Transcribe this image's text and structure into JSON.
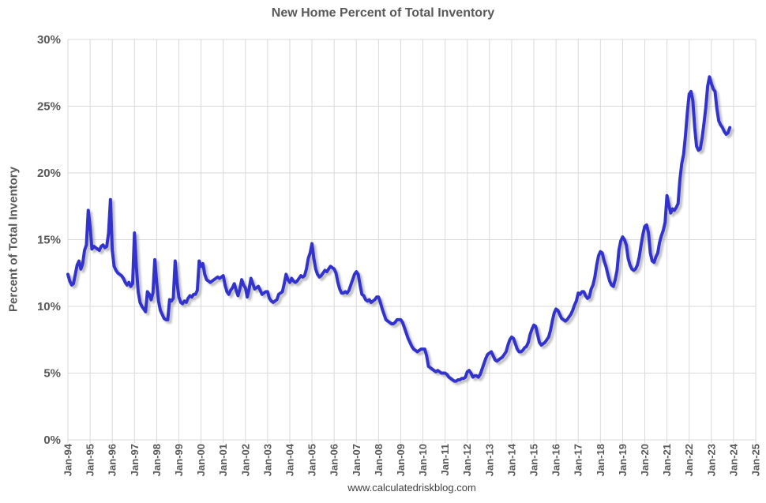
{
  "chart_data": {
    "type": "line",
    "title": "New Home Percent of Total Inventory",
    "ylabel": "Percent of Total Inventory",
    "watermark": "www.calculatedriskblog.com",
    "grid": true,
    "legend": "none",
    "line_color": "#3333cf",
    "grid_color": "#d9d9d9",
    "text_color": "#595959",
    "ylim": [
      0,
      30
    ],
    "y_tick_labels": [
      "0%",
      "5%",
      "10%",
      "15%",
      "20%",
      "25%",
      "30%"
    ],
    "x_tick_labels": [
      "Jan-94",
      "Jan-95",
      "Jan-96",
      "Jan-97",
      "Jan-98",
      "Jan-99",
      "Jan-00",
      "Jan-01",
      "Jan-02",
      "Jan-03",
      "Jan-04",
      "Jan-05",
      "Jan-06",
      "Jan-07",
      "Jan-08",
      "Jan-09",
      "Jan-10",
      "Jan-11",
      "Jan-12",
      "Jan-13",
      "Jan-14",
      "Jan-15",
      "Jan-16",
      "Jan-17",
      "Jan-18",
      "Jan-19",
      "Jan-20",
      "Jan-21",
      "Jan-22",
      "Jan-23",
      "Jan-24",
      "Jan-25"
    ],
    "x_start": "Jan-1994",
    "x_end": "Nov-2023",
    "frequency": "monthly",
    "series": [
      {
        "name": "New Home Percent of Total Inventory",
        "values": [
          12.4,
          11.9,
          11.6,
          11.7,
          12.4,
          13.1,
          13.4,
          12.8,
          13.2,
          14.2,
          14.6,
          17.2,
          16.0,
          14.3,
          14.5,
          14.4,
          14.3,
          14.2,
          14.5,
          14.6,
          14.4,
          14.5,
          15.5,
          18.0,
          14.2,
          13.0,
          12.7,
          12.5,
          12.4,
          12.3,
          12.1,
          11.8,
          11.6,
          11.8,
          11.5,
          11.7,
          15.5,
          13.0,
          11.1,
          10.3,
          10.0,
          9.8,
          9.6,
          11.1,
          10.9,
          10.5,
          11.0,
          13.5,
          11.8,
          10.4,
          9.7,
          9.4,
          9.1,
          9.0,
          9.0,
          10.5,
          10.4,
          10.6,
          13.4,
          11.8,
          10.7,
          10.3,
          10.2,
          10.4,
          10.3,
          10.6,
          10.8,
          10.7,
          10.9,
          10.9,
          11.2,
          13.4,
          13.0,
          13.2,
          12.4,
          12.0,
          11.9,
          11.8,
          11.9,
          12.0,
          12.1,
          12.2,
          12.1,
          12.2,
          12.3,
          11.6,
          11.1,
          10.9,
          11.2,
          11.4,
          11.7,
          11.2,
          10.8,
          11.3,
          12.0,
          11.6,
          11.4,
          10.7,
          11.3,
          12.1,
          11.7,
          11.3,
          11.4,
          11.5,
          11.2,
          10.9,
          11.0,
          11.1,
          11.1,
          10.6,
          10.4,
          10.3,
          10.4,
          10.5,
          10.9,
          11.0,
          11.1,
          11.7,
          12.4,
          12.0,
          11.8,
          12.1,
          11.9,
          11.8,
          11.9,
          12.1,
          12.3,
          12.2,
          12.3,
          12.8,
          13.6,
          14.0,
          14.7,
          13.6,
          12.8,
          12.4,
          12.2,
          12.3,
          12.5,
          12.7,
          12.6,
          12.8,
          13.0,
          12.9,
          12.8,
          12.5,
          11.8,
          11.3,
          11.0,
          11.0,
          11.1,
          11.0,
          11.2,
          11.6,
          12.0,
          12.4,
          12.6,
          12.4,
          11.6,
          10.9,
          10.8,
          10.5,
          10.4,
          10.5,
          10.3,
          10.4,
          10.5,
          10.7,
          10.7,
          10.3,
          9.8,
          9.4,
          9.0,
          8.9,
          8.8,
          8.7,
          8.7,
          8.8,
          9.0,
          9.0,
          9.0,
          8.8,
          8.4,
          8.0,
          7.6,
          7.3,
          7.0,
          6.8,
          6.7,
          6.6,
          6.7,
          6.8,
          6.8,
          6.8,
          6.3,
          5.5,
          5.4,
          5.3,
          5.2,
          5.1,
          5.2,
          5.1,
          5.0,
          5.0,
          5.0,
          4.9,
          4.7,
          4.6,
          4.5,
          4.4,
          4.4,
          4.5,
          4.5,
          4.6,
          4.6,
          4.7,
          5.1,
          5.2,
          5.0,
          4.7,
          4.8,
          4.8,
          4.7,
          4.9,
          5.3,
          5.7,
          6.1,
          6.4,
          6.5,
          6.6,
          6.3,
          6.0,
          5.9,
          6.0,
          6.1,
          6.2,
          6.4,
          6.6,
          7.1,
          7.5,
          7.7,
          7.6,
          7.2,
          6.8,
          6.6,
          6.6,
          6.7,
          6.9,
          7.0,
          7.3,
          7.9,
          8.3,
          8.6,
          8.5,
          7.9,
          7.3,
          7.1,
          7.2,
          7.3,
          7.5,
          7.7,
          8.2,
          8.9,
          9.5,
          9.8,
          9.7,
          9.4,
          9.1,
          9.0,
          8.9,
          9.0,
          9.2,
          9.4,
          9.7,
          10.1,
          10.4,
          11.0,
          10.9,
          11.1,
          11.1,
          10.8,
          10.6,
          10.7,
          11.3,
          11.6,
          12.2,
          13.1,
          13.8,
          14.1,
          14.0,
          13.4,
          13.0,
          12.4,
          11.9,
          11.6,
          11.5,
          12.0,
          12.7,
          14.2,
          14.9,
          15.2,
          15.0,
          14.6,
          13.6,
          13.1,
          12.8,
          12.7,
          12.8,
          13.1,
          13.7,
          14.6,
          15.4,
          16.0,
          16.1,
          15.5,
          14.0,
          13.4,
          13.3,
          13.7,
          14.0,
          14.8,
          15.3,
          15.7,
          16.3,
          18.3,
          17.6,
          17.0,
          17.3,
          17.2,
          17.4,
          17.7,
          19.5,
          20.7,
          21.4,
          22.8,
          24.5,
          25.9,
          26.1,
          25.4,
          23.4,
          22.0,
          21.7,
          21.8,
          22.6,
          23.7,
          24.9,
          26.5,
          27.2,
          26.7,
          26.3,
          26.1,
          24.8,
          23.9,
          23.6,
          23.4,
          23.1,
          22.9,
          23.0,
          23.4
        ]
      }
    ]
  }
}
